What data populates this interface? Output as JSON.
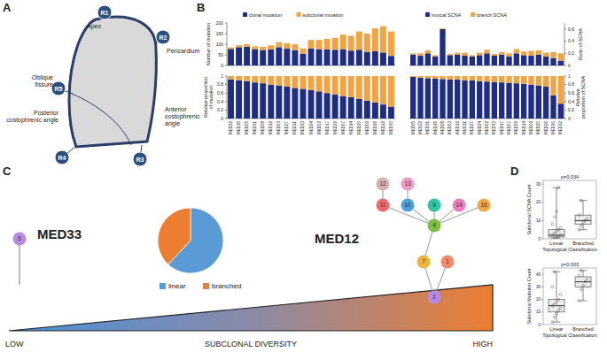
{
  "panel_labels": [
    "A",
    "B",
    "C",
    "D"
  ],
  "diagram": {
    "regions": [
      {
        "id": "R1",
        "label": "Apex"
      },
      {
        "id": "R2",
        "label": "Pericardium"
      },
      {
        "id": "R3",
        "label": "Anterior costophrenic angle"
      },
      {
        "id": "R4",
        "label": "Posterior costophrenic angle"
      },
      {
        "id": "R5",
        "label": "Oblique fissure"
      }
    ]
  },
  "chart_data": [
    {
      "type": "bar",
      "stacked": true,
      "legend": "top",
      "y_label": "Number of mutation",
      "ylim": [
        0,
        200
      ],
      "yticks": [
        0,
        50,
        100,
        150,
        200
      ],
      "series": [
        {
          "name": "clonal mutation",
          "color": "#1f2d86",
          "values": [
            78,
            86,
            88,
            77,
            73,
            76,
            86,
            79,
            72,
            56,
            80,
            77,
            75,
            74,
            77,
            70,
            74,
            63,
            67,
            61,
            45
          ]
        },
        {
          "name": "subclonal mutation",
          "color": "#f4a340",
          "values": [
            7,
            9,
            12,
            13,
            15,
            19,
            24,
            26,
            28,
            24,
            40,
            43,
            50,
            56,
            68,
            70,
            86,
            87,
            108,
            124,
            115
          ]
        }
      ]
    },
    {
      "type": "bar",
      "stacked": true,
      "y_label": "Relative proportion of mutation",
      "ylim": [
        0,
        1
      ],
      "yticks": [
        0,
        0.2,
        0.4,
        0.6,
        0.8,
        1
      ],
      "categories": [
        "MED22",
        "MED15",
        "MED05",
        "MED31",
        "MED08",
        "MED19",
        "MED03",
        "MED27",
        "MED11",
        "MED33",
        "MED24",
        "MED02",
        "MED17",
        "MED29",
        "MED07",
        "MED14",
        "MED20",
        "MED09",
        "MED26",
        "MED12",
        "MED30"
      ],
      "series": [
        {
          "color": "#1f2d86",
          "values": [
            0.92,
            0.9,
            0.88,
            0.85,
            0.83,
            0.8,
            0.78,
            0.75,
            0.72,
            0.7,
            0.67,
            0.64,
            0.6,
            0.57,
            0.53,
            0.5,
            0.46,
            0.42,
            0.38,
            0.33,
            0.28
          ]
        },
        {
          "color": "#f4a340",
          "values": [
            0.08,
            0.1,
            0.12,
            0.15,
            0.17,
            0.2,
            0.22,
            0.25,
            0.28,
            0.3,
            0.33,
            0.36,
            0.4,
            0.43,
            0.47,
            0.5,
            0.54,
            0.58,
            0.62,
            0.67,
            0.72
          ]
        }
      ]
    },
    {
      "type": "bar",
      "stacked": true,
      "legend": "top",
      "y_label": "Ratio of SCNA",
      "y2lim": [
        0,
        0.7
      ],
      "y2ticks": [
        0,
        0.2,
        0.4,
        0.6
      ],
      "series": [
        {
          "name": "truncal SCNA",
          "color": "#1f2d86",
          "axis": "y2",
          "values": [
            0.18,
            0.16,
            0.2,
            0.15,
            0.6,
            0.17,
            0.18,
            0.16,
            0.15,
            0.17,
            0.2,
            0.16,
            0.18,
            0.15,
            0.2,
            0.17,
            0.16,
            0.18,
            0.15,
            0.12,
            0.08
          ]
        },
        {
          "name": "branch SCNA",
          "color": "#f4a340",
          "axis": "y2",
          "values": [
            0.02,
            0.04,
            0.05,
            0.02,
            0.01,
            0.02,
            0.03,
            0.05,
            0.02,
            0.04,
            0.06,
            0.03,
            0.04,
            0.05,
            0.07,
            0.06,
            0.08,
            0.07,
            0.06,
            0.1,
            0.12
          ]
        }
      ]
    },
    {
      "type": "bar",
      "stacked": true,
      "y_label": "Relative proportion of SCNA",
      "y2lim": [
        0,
        1
      ],
      "y2ticks": [
        0,
        0.2,
        0.4,
        0.6,
        0.8,
        1
      ],
      "categories": [
        "MED05",
        "MED22",
        "MED31",
        "MED15",
        "MED08",
        "MED03",
        "MED19",
        "MED11",
        "MED27",
        "MED24",
        "MED02",
        "MED33",
        "MED17",
        "MED07",
        "MED29",
        "MED14",
        "MED09",
        "MED20",
        "MED26",
        "MED30",
        "MED12"
      ],
      "series": [
        {
          "color": "#1f2d86",
          "axis": "y2",
          "values": [
            0.98,
            0.96,
            0.95,
            0.94,
            0.93,
            0.92,
            0.92,
            0.9,
            0.9,
            0.88,
            0.87,
            0.86,
            0.85,
            0.84,
            0.83,
            0.82,
            0.8,
            0.78,
            0.75,
            0.55,
            0.35
          ]
        },
        {
          "color": "#f4a340",
          "axis": "y2",
          "values": [
            0.02,
            0.04,
            0.05,
            0.06,
            0.07,
            0.08,
            0.08,
            0.1,
            0.1,
            0.12,
            0.13,
            0.14,
            0.15,
            0.16,
            0.17,
            0.18,
            0.2,
            0.22,
            0.25,
            0.45,
            0.65
          ]
        }
      ]
    },
    {
      "type": "pie",
      "legend": "bottom",
      "categories": [
        "linear",
        "branched"
      ],
      "values": [
        62,
        38
      ],
      "colors": [
        "#5b9bd5",
        "#ed7d31"
      ]
    },
    {
      "type": "box",
      "title": "p=0.034",
      "y_label": "Subclonal SCNA Count",
      "x_label": "Topological Classification",
      "categories": [
        "Linear",
        "Branched"
      ],
      "ylim": [
        0,
        32
      ],
      "yticks": [
        0,
        10,
        20,
        30
      ],
      "boxes": [
        {
          "min": 0,
          "q1": 1,
          "median": 2,
          "q3": 5,
          "max": 28,
          "points": [
            0,
            0,
            1,
            1,
            2,
            2,
            3,
            4,
            5,
            6,
            8,
            12,
            15,
            28
          ]
        },
        {
          "min": 5,
          "q1": 8,
          "median": 10,
          "q3": 13,
          "max": 21,
          "points": [
            5,
            7,
            9,
            10,
            11,
            13,
            21
          ]
        }
      ]
    },
    {
      "type": "box",
      "title": "p=0.003",
      "y_label": "Subclonal Mutation Count",
      "x_label": "Topological Classification",
      "categories": [
        "Linear",
        "Branched"
      ],
      "ylim": [
        0,
        45
      ],
      "yticks": [
        0,
        10,
        20,
        30,
        40
      ],
      "boxes": [
        {
          "min": 2,
          "q1": 10,
          "median": 15,
          "q3": 20,
          "max": 42,
          "points": [
            2,
            6,
            9,
            11,
            13,
            15,
            16,
            18,
            20,
            24,
            30,
            42
          ]
        },
        {
          "min": 19,
          "q1": 30,
          "median": 34,
          "q3": 38,
          "max": 43,
          "points": [
            19,
            28,
            31,
            34,
            36,
            39,
            43
          ]
        }
      ]
    }
  ],
  "trees": [
    {
      "label": "MED33",
      "nodes": [
        {
          "label": "6",
          "color": "#b48be6"
        }
      ],
      "edges": []
    },
    {
      "label": "MED12",
      "nodes": [
        {
          "label": "2",
          "color": "#b48be6"
        },
        {
          "label": "7",
          "color": "#f0b43c"
        },
        {
          "label": "1",
          "color": "#f28a6b"
        },
        {
          "label": "4",
          "color": "#7bc043"
        },
        {
          "label": "11",
          "color": "#f06a6a"
        },
        {
          "label": "10",
          "color": "#4aa3df"
        },
        {
          "label": "9",
          "color": "#2ec4a6"
        },
        {
          "label": "14",
          "color": "#f07cc0"
        },
        {
          "label": "16",
          "color": "#f5a742"
        },
        {
          "label": "12",
          "color": "#d9b0b0"
        },
        {
          "label": "13",
          "color": "#f29ac4"
        }
      ],
      "edges": [
        [
          0,
          1
        ],
        [
          0,
          2
        ],
        [
          1,
          3
        ],
        [
          3,
          4
        ],
        [
          3,
          5
        ],
        [
          3,
          6
        ],
        [
          3,
          7
        ],
        [
          3,
          8
        ],
        [
          4,
          9
        ],
        [
          5,
          10
        ]
      ]
    }
  ],
  "gradient": {
    "low": "LOW",
    "label": "SUBCLONAL DIVERSITY",
    "high": "HIGH"
  }
}
